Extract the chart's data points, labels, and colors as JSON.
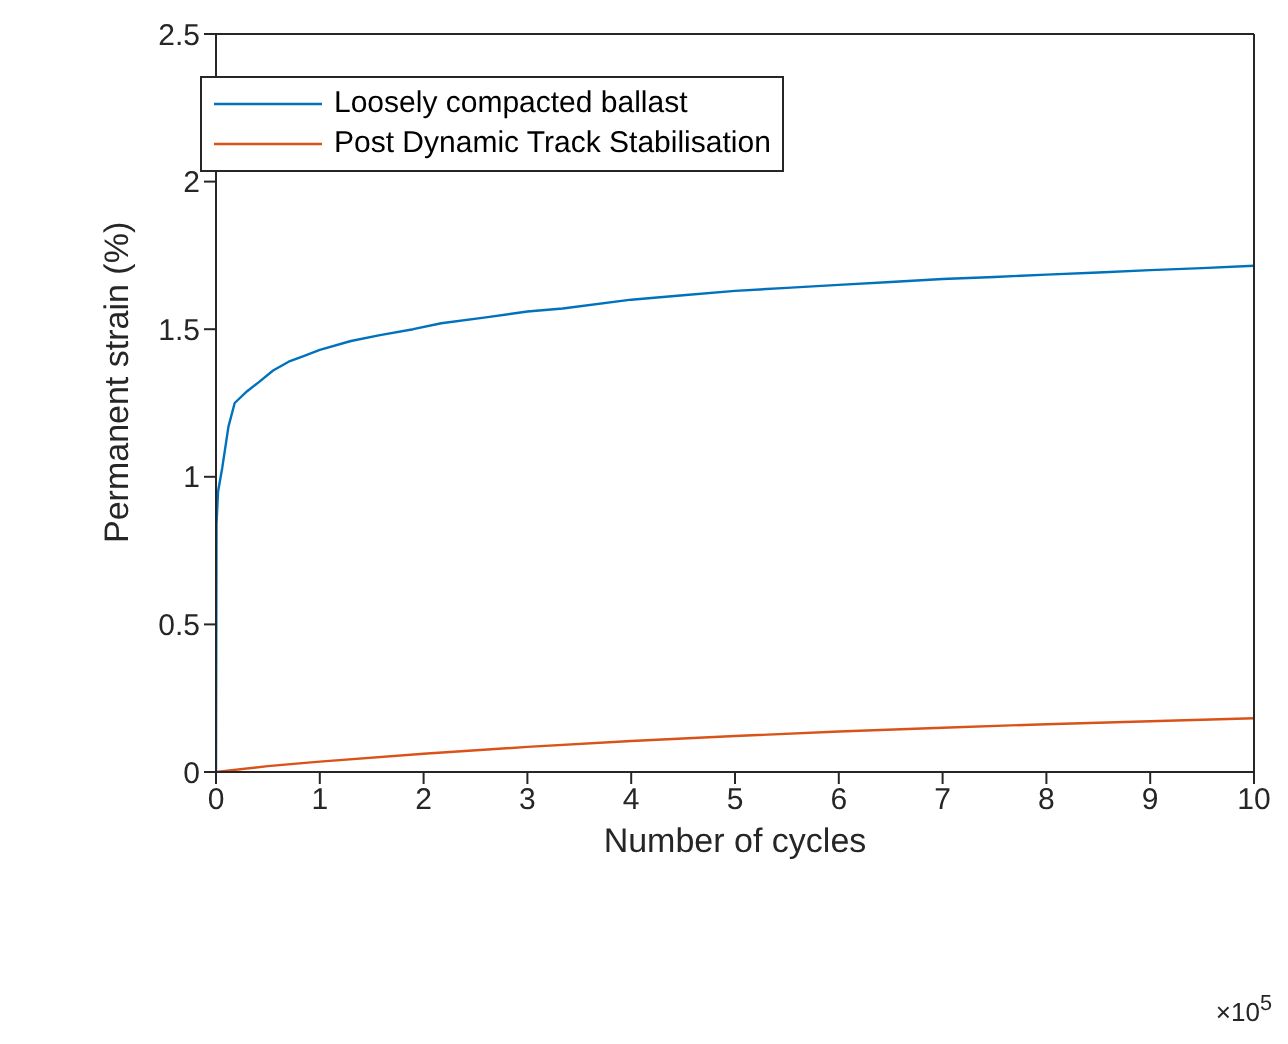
{
  "chart_data": {
    "type": "line",
    "xlabel": "Number of cycles",
    "ylabel": "Permanent strain (%)",
    "xlim": [
      0,
      10
    ],
    "xticks": [
      0,
      1,
      2,
      3,
      4,
      5,
      6,
      7,
      8,
      9,
      10
    ],
    "ylim": [
      0,
      2.5
    ],
    "yticks": [
      0,
      0.5,
      1,
      1.5,
      2,
      2.5
    ],
    "grid": false,
    "legend": "top left",
    "marker": "none",
    "line_style": "solid",
    "annotations": [
      "×10$^{5}$"
    ],
    "series": [
      {
        "name": "Loosely compacted ballast",
        "color": "#0072bd",
        "x": [
          0,
          0.005,
          0.02,
          0.06,
          0.12,
          0.18,
          0.3,
          0.41,
          0.55,
          0.7,
          0.85,
          1,
          1.3,
          1.58,
          1.9,
          2.17,
          2.6,
          3.0,
          3.34,
          4,
          4.5,
          5,
          5.5,
          6,
          6.5,
          7,
          7.5,
          8,
          8.5,
          9,
          9.5,
          10
        ],
        "values": [
          0,
          0.84,
          0.95,
          1.03,
          1.17,
          1.25,
          1.29,
          1.32,
          1.36,
          1.39,
          1.41,
          1.43,
          1.46,
          1.48,
          1.5,
          1.52,
          1.54,
          1.56,
          1.57,
          1.6,
          1.615,
          1.63,
          1.64,
          1.65,
          1.66,
          1.67,
          1.677,
          1.685,
          1.692,
          1.7,
          1.707,
          1.715
        ]
      },
      {
        "name": "Post Dynamic Track Stabilisation",
        "color": "#d95319",
        "x": [
          0,
          0.5,
          1,
          2,
          3,
          4,
          5,
          6,
          7,
          8,
          9,
          10
        ],
        "values": [
          0,
          0.02,
          0.035,
          0.062,
          0.085,
          0.105,
          0.122,
          0.137,
          0.15,
          0.162,
          0.172,
          0.182
        ]
      }
    ]
  }
}
